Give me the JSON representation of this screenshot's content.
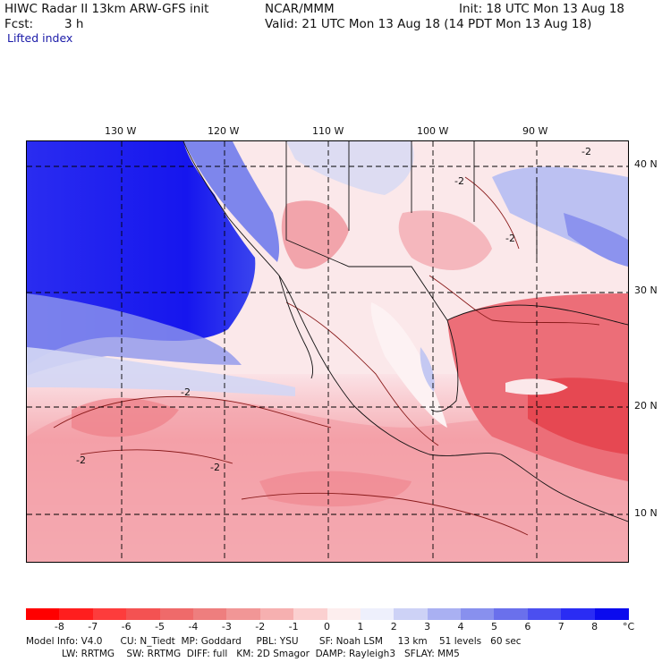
{
  "header": {
    "model": "HIWC Radar II 13km ARW-GFS init",
    "org": "NCAR/MMM",
    "init": "Init: 18 UTC Mon 13 Aug 18",
    "fcst_label": "Fcst:",
    "fcst_value": "3 h",
    "valid": "Valid: 21 UTC Mon 13 Aug 18 (14 PDT Mon 13 Aug 18)",
    "field": "Lifted index"
  },
  "map": {
    "lon_labels": [
      "130 W",
      "120 W",
      "110 W",
      "100 W",
      "90 W"
    ],
    "lat_labels": [
      "40 N",
      "30 N",
      "20 N",
      "10 N"
    ],
    "contour_labels": [
      "-2",
      "-2",
      "-2",
      "-2",
      "-2",
      "-2"
    ],
    "colors": {
      "ocean_stable": "#1c1cf0",
      "stable_light": "#c8ccf4",
      "neutral": "#fbe8ea",
      "unstable": "#f2868c",
      "unstable_strong": "#e8454e"
    }
  },
  "colorbar": {
    "ticks": [
      "-8",
      "-7",
      "-6",
      "-5",
      "-4",
      "-3",
      "-2",
      "-1",
      "0",
      "1",
      "2",
      "3",
      "4",
      "5",
      "6",
      "7",
      "8"
    ],
    "unit": "°C",
    "colors": [
      "#ff0000",
      "#ff1e1e",
      "#fd3c3c",
      "#f45252",
      "#ef6a6a",
      "#ee7e7e",
      "#f19696",
      "#f6b0b0",
      "#fbd0d0",
      "#fdeeee",
      "#eef0fc",
      "#cdd2f6",
      "#a9b0f2",
      "#8890ee",
      "#6a70ec",
      "#4b4ff0",
      "#2a2cf4",
      "#0b0bee"
    ]
  },
  "footer": {
    "line1": "Model Info: V4.0      CU: N_Tiedt  MP: Goddard     PBL: YSU       SF: Noah LSM     13 km    51 levels   60 sec",
    "line2": "            LW: RRTMG    SW: RRTMG  DIFF: full   KM: 2D Smagor  DAMP: Rayleigh3   SFLAY: MM5"
  }
}
